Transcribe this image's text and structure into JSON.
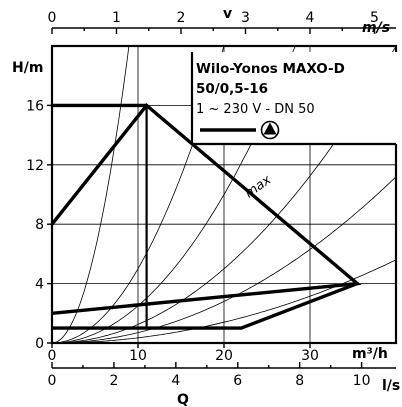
{
  "chart_data": {
    "type": "line",
    "product": {
      "name": "Wilo-Yonos MAXO-D",
      "model": "50/0,5-16",
      "supply": "1 ~ 230 V - DN 50"
    },
    "series_label": "max",
    "x": {
      "unit": "m³/h",
      "range": [
        0,
        40
      ],
      "ticks": [
        0,
        10,
        20,
        30
      ]
    },
    "y": {
      "label": "H/m",
      "range": [
        0,
        20
      ],
      "ticks": [
        0,
        4,
        8,
        12,
        16
      ]
    },
    "x_top": {
      "label": "v",
      "unit": "m/s",
      "ticks": [
        0,
        1,
        2,
        3,
        4,
        5
      ]
    },
    "x_bottom": {
      "label": "Q",
      "unit": "l/s",
      "ticks": [
        0,
        2,
        4,
        6,
        8,
        10
      ]
    },
    "grid": true,
    "curves": {
      "max": [
        [
          0,
          8
        ],
        [
          11,
          16
        ],
        [
          35.5,
          4
        ],
        [
          0,
          2
        ]
      ],
      "min": [
        [
          0,
          1
        ],
        [
          22,
          1
        ],
        [
          35.5,
          4
        ]
      ],
      "constant_16": [
        [
          0,
          16
        ],
        [
          11,
          16
        ]
      ],
      "vertical_11": [
        [
          11,
          16
        ],
        [
          11,
          1
        ]
      ]
    },
    "system_curve_k": [
      0.25,
      0.05,
      0.025,
      0.0125,
      0.007,
      0.0035
    ]
  }
}
